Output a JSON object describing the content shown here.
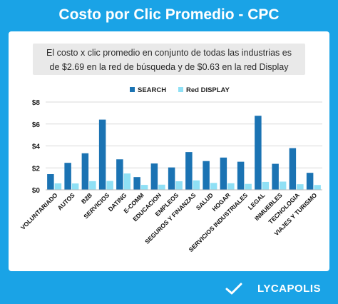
{
  "title": "Costo por Clic Promedio - CPC",
  "subtitle_lines": [
    "El costo x clic promedio en conjunto de todas las industrias es",
    "de $2.69 en la red de búsqueda y de $0.63 en la red Display"
  ],
  "brand": "LYCAPOLIS",
  "colors": {
    "background": "#1aa3e6",
    "search": "#1b73b3",
    "display": "#8fe0f5",
    "grid": "#d9d9d9"
  },
  "chart_data": {
    "type": "bar",
    "categories": [
      "VOLUNTARIADO",
      "AUTOS",
      "B2B",
      "SERVICIOS",
      "DATING",
      "E-COMM",
      "EDUCACION",
      "EMPLEOS",
      "SEGUROS Y FINANZAS",
      "SALUD",
      "HOGAR",
      "SERVICIOS INDUSTRIALES",
      "LEGAL",
      "INMUEBLES",
      "TECNOLOGIA",
      "VIAJES Y TURISMO"
    ],
    "series": [
      {
        "name": "SEARCH",
        "values": [
          1.43,
          2.46,
          3.33,
          6.4,
          2.78,
          1.16,
          2.4,
          2.04,
          3.44,
          2.62,
          2.94,
          2.56,
          6.75,
          2.37,
          3.8,
          1.55
        ]
      },
      {
        "name": "Red DISPLAY",
        "values": [
          0.59,
          0.58,
          0.79,
          0.81,
          1.49,
          0.45,
          0.47,
          0.78,
          0.86,
          0.63,
          0.6,
          0.54,
          0.72,
          0.75,
          0.51,
          0.44
        ]
      }
    ],
    "y_ticks": [
      "$0",
      "$2",
      "$4",
      "$6",
      "$8"
    ],
    "ylim": [
      0,
      8
    ],
    "grid": true,
    "legend_position": "top-center"
  }
}
